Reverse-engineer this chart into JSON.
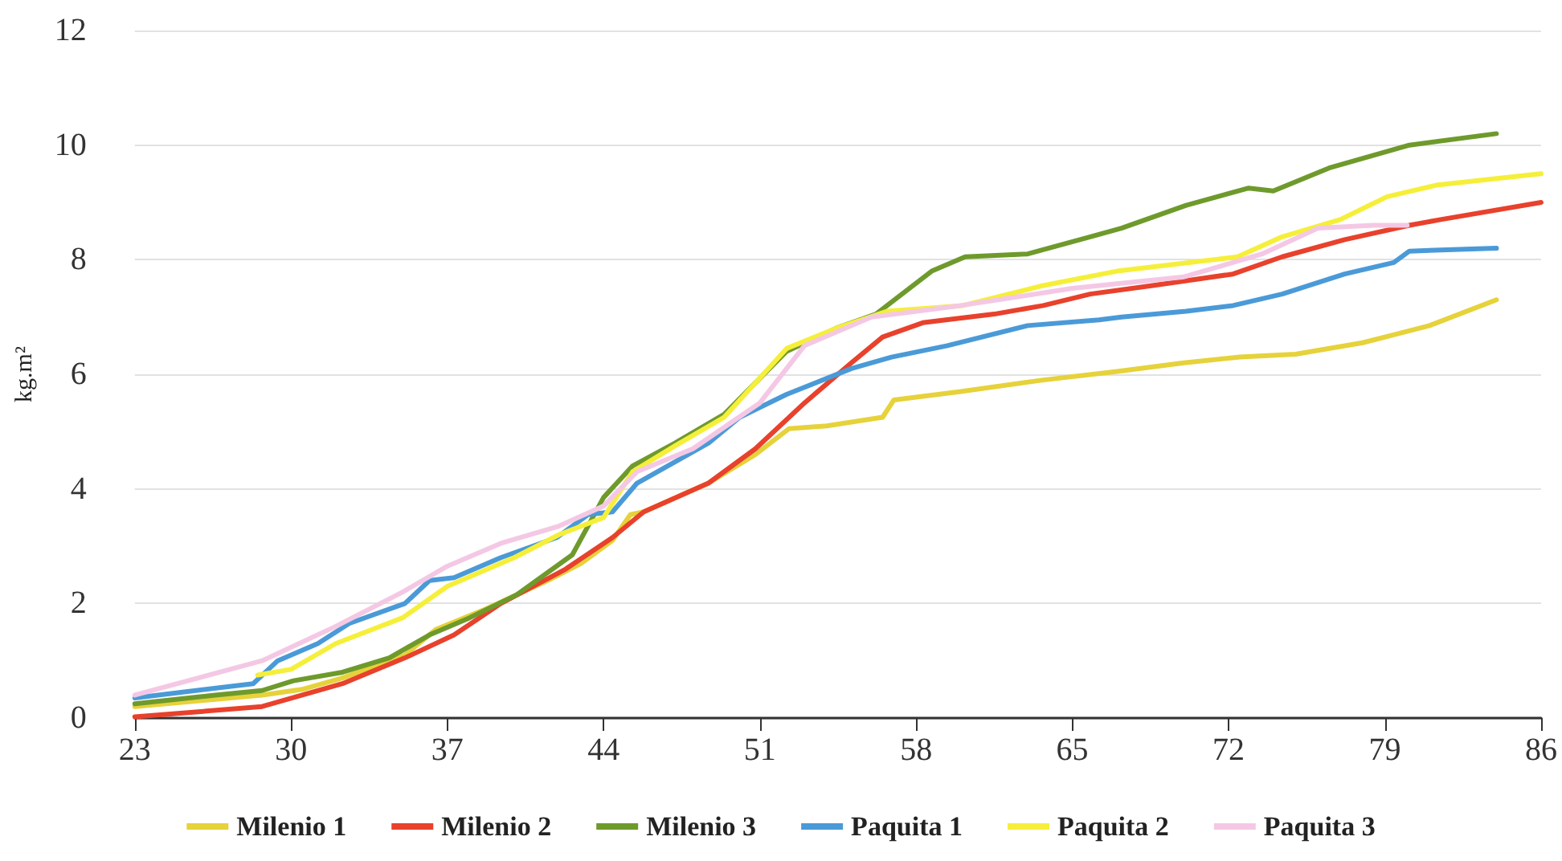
{
  "chart_data": {
    "type": "line",
    "ylabel": "kg.m²",
    "xlim": [
      23,
      86
    ],
    "xticks": [
      23,
      30,
      37,
      44,
      51,
      58,
      65,
      72,
      79,
      86
    ],
    "ylim": [
      0,
      12
    ],
    "yticks": [
      0,
      2,
      4,
      6,
      8,
      10,
      12
    ],
    "grid": "y",
    "legend": "bottom",
    "marker": "none",
    "series": [
      {
        "name": "Milenio 1",
        "color": "#e6d23a",
        "x": [
          23,
          28.7,
          30.5,
          32.3,
          35.1,
          36.5,
          38.7,
          41.5,
          43,
          44.4,
          45.2,
          45.8,
          48.7,
          50.8,
          52.3,
          54,
          56.5,
          57,
          60,
          63.7,
          67,
          70,
          72.5,
          75,
          78,
          79.5,
          81,
          84
        ],
        "values": [
          0.2,
          0.4,
          0.5,
          0.7,
          1.1,
          1.55,
          1.9,
          2.4,
          2.7,
          3.1,
          3.55,
          3.6,
          4.1,
          4.6,
          5.05,
          5.1,
          5.25,
          5.55,
          5.7,
          5.9,
          6.05,
          6.2,
          6.3,
          6.35,
          6.55,
          6.7,
          6.85,
          7.3
        ]
      },
      {
        "name": "Milenio 2",
        "color": "#e8412c",
        "x": [
          23,
          28.7,
          30.5,
          32.3,
          35.1,
          37.3,
          39.4,
          42.3,
          44.4,
          45.8,
          48.7,
          50.8,
          53,
          55.1,
          56.5,
          58.3,
          61.5,
          63.7,
          65.8,
          68.6,
          72.2,
          74.4,
          77.2,
          80.1,
          81.5,
          86
        ],
        "values": [
          0.02,
          0.2,
          0.4,
          0.6,
          1.05,
          1.45,
          2,
          2.6,
          3.15,
          3.6,
          4.1,
          4.7,
          5.5,
          6.2,
          6.65,
          6.9,
          7.05,
          7.2,
          7.4,
          7.55,
          7.75,
          8.05,
          8.35,
          8.6,
          8.7,
          9
        ]
      },
      {
        "name": "Milenio 3",
        "color": "#6e9a2c",
        "x": [
          23,
          26.6,
          28.7,
          30.1,
          32.3,
          34.4,
          36.2,
          38,
          40.1,
          42.6,
          44,
          45.3,
          47.2,
          49.4,
          52.2,
          54.4,
          56.2,
          58.7,
          60.2,
          63,
          65.8,
          67.2,
          70.1,
          72.9,
          74,
          76.5,
          80.1,
          84
        ],
        "values": [
          0.25,
          0.4,
          0.48,
          0.65,
          0.8,
          1.05,
          1.45,
          1.75,
          2.15,
          2.85,
          3.85,
          4.4,
          4.8,
          5.3,
          6.4,
          6.8,
          7.05,
          7.8,
          8.05,
          8.1,
          8.4,
          8.55,
          8.95,
          9.25,
          9.2,
          9.6,
          10,
          10.2
        ]
      },
      {
        "name": "Paquita 1",
        "color": "#4a9ad8",
        "x": [
          23,
          28.3,
          29.4,
          31.2,
          32.6,
          35.1,
          36.2,
          37.3,
          39.4,
          41.9,
          43.3,
          44.4,
          45.5,
          48.7,
          50.1,
          52.2,
          55.1,
          56.9,
          59.4,
          63,
          66.2,
          67.2,
          70.1,
          72.2,
          74.4,
          77.2,
          79.4,
          80.1,
          84
        ],
        "values": [
          0.35,
          0.6,
          1,
          1.3,
          1.65,
          2,
          2.4,
          2.45,
          2.8,
          3.15,
          3.55,
          3.6,
          4.1,
          4.8,
          5.25,
          5.65,
          6.1,
          6.3,
          6.5,
          6.85,
          6.95,
          7,
          7.1,
          7.2,
          7.4,
          7.75,
          7.95,
          8.15,
          8.2
        ]
      },
      {
        "name": "Paquita 2",
        "color": "#f5ef3a",
        "x": [
          28.5,
          30,
          32,
          33,
          35,
          37,
          40,
          42,
          44,
          45.3,
          47.2,
          49.4,
          52.2,
          54.4,
          56.7,
          60.1,
          63.7,
          67,
          72.4,
          74.4,
          77,
          79.1,
          81.3,
          86
        ],
        "values": [
          0.75,
          0.85,
          1.3,
          1.45,
          1.75,
          2.3,
          2.8,
          3.2,
          3.5,
          4.3,
          4.75,
          5.25,
          6.45,
          6.8,
          7.1,
          7.2,
          7.55,
          7.8,
          8.05,
          8.4,
          8.7,
          9.1,
          9.3,
          9.5
        ]
      },
      {
        "name": "Paquita 3",
        "color": "#f4c8e4",
        "x": [
          23,
          28.7,
          32,
          35,
          37,
          39.4,
          42,
          44,
          45.5,
          48,
          51,
          53,
          56,
          60,
          65,
          70,
          73.5,
          76,
          78.5,
          80
        ],
        "values": [
          0.4,
          1,
          1.6,
          2.2,
          2.65,
          3.05,
          3.35,
          3.7,
          4.3,
          4.7,
          5.5,
          6.5,
          7,
          7.2,
          7.5,
          7.7,
          8.1,
          8.55,
          8.6,
          8.6
        ]
      }
    ]
  }
}
